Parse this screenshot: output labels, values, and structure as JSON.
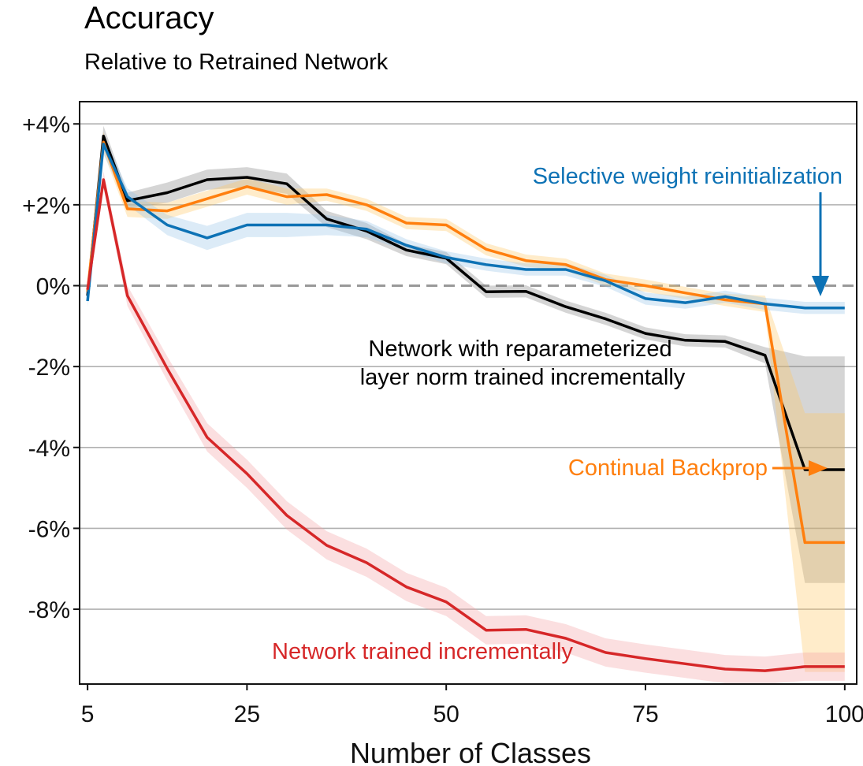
{
  "chart_data": {
    "type": "line",
    "title": "Accuracy",
    "subtitle": "Relative to Retrained Network",
    "xlabel": "Number of Classes",
    "ylabel": "",
    "xlim": [
      4,
      101.5
    ],
    "ylim": [
      -9.85,
      4.55
    ],
    "xticks": [
      5,
      25,
      50,
      75,
      100
    ],
    "xtick_labels": [
      "5",
      "25",
      "50",
      "75",
      "100"
    ],
    "yticks": [
      4,
      2,
      0,
      -2,
      -4,
      -6,
      -8
    ],
    "ytick_labels": [
      "+4%",
      "+2%",
      "0%",
      "-2%",
      "-4%",
      "-6%",
      "-8%"
    ],
    "grid": "horizontal",
    "zero_line": "dashed",
    "x": [
      5,
      7,
      10,
      15,
      20,
      25,
      30,
      35,
      40,
      45,
      50,
      55,
      60,
      65,
      70,
      75,
      80,
      85,
      90,
      95,
      100
    ],
    "series": [
      {
        "name": "Network with reparameterized layer norm trained incrementally",
        "color": "#000000",
        "band_color": "#888888",
        "values": [
          -0.25,
          3.7,
          2.1,
          2.3,
          2.62,
          2.68,
          2.52,
          1.65,
          1.35,
          0.88,
          0.68,
          -0.15,
          -0.14,
          -0.52,
          -0.82,
          -1.18,
          -1.35,
          -1.38,
          -1.72,
          -4.55,
          -4.55
        ],
        "band": [
          0.15,
          0.25,
          0.2,
          0.25,
          0.25,
          0.25,
          0.25,
          0.2,
          0.2,
          0.15,
          0.15,
          0.15,
          0.15,
          0.15,
          0.15,
          0.15,
          0.15,
          0.15,
          0.2,
          2.8,
          2.8
        ]
      },
      {
        "name": "Continual Backprop",
        "color": "#ff7f0e",
        "band_color": "#ffc868",
        "values": [
          -0.15,
          3.55,
          1.9,
          1.85,
          2.15,
          2.45,
          2.2,
          2.25,
          2.0,
          1.55,
          1.5,
          0.9,
          0.62,
          0.52,
          0.15,
          0.0,
          -0.18,
          -0.35,
          -0.45,
          -6.35,
          -6.35
        ],
        "band": [
          0.15,
          0.25,
          0.2,
          0.2,
          0.2,
          0.2,
          0.2,
          0.15,
          0.15,
          0.15,
          0.15,
          0.15,
          0.15,
          0.15,
          0.15,
          0.15,
          0.15,
          0.15,
          0.2,
          3.2,
          3.2
        ]
      },
      {
        "name": "Selective weight reinitialization",
        "color": "#0d72b5",
        "band_color": "#9cc6e8",
        "values": [
          -0.38,
          3.5,
          2.2,
          1.5,
          1.18,
          1.5,
          1.5,
          1.5,
          1.4,
          1.0,
          0.7,
          0.52,
          0.4,
          0.4,
          0.12,
          -0.32,
          -0.42,
          -0.27,
          -0.45,
          -0.55,
          -0.55
        ],
        "band": [
          0.15,
          0.25,
          0.2,
          0.25,
          0.3,
          0.3,
          0.3,
          0.25,
          0.2,
          0.15,
          0.15,
          0.15,
          0.15,
          0.15,
          0.15,
          0.15,
          0.15,
          0.15,
          0.15,
          0.15,
          0.15
        ]
      },
      {
        "name": "Network trained incrementally",
        "color": "#d62728",
        "band_color": "#f4a3a6",
        "values": [
          -0.1,
          2.62,
          -0.25,
          -2.05,
          -3.75,
          -4.65,
          -5.68,
          -6.42,
          -6.85,
          -7.45,
          -7.82,
          -8.52,
          -8.5,
          -8.72,
          -9.07,
          -9.22,
          -9.35,
          -9.48,
          -9.52,
          -9.42,
          -9.42
        ],
        "band": [
          0.15,
          0.2,
          0.25,
          0.3,
          0.35,
          0.35,
          0.35,
          0.35,
          0.35,
          0.35,
          0.35,
          0.35,
          0.35,
          0.35,
          0.35,
          0.35,
          0.35,
          0.35,
          0.35,
          0.35,
          0.35
        ]
      }
    ],
    "annotations": [
      {
        "text": "Selective weight reinitialization",
        "color": "#0d72b5"
      },
      {
        "text": "Network with reparameterized",
        "color": "#000000"
      },
      {
        "text": "layer norm trained incrementally",
        "color": "#000000"
      },
      {
        "text": "Continual Backprop",
        "color": "#ff7f0e"
      },
      {
        "text": "Network trained incrementally",
        "color": "#d62728"
      }
    ]
  }
}
